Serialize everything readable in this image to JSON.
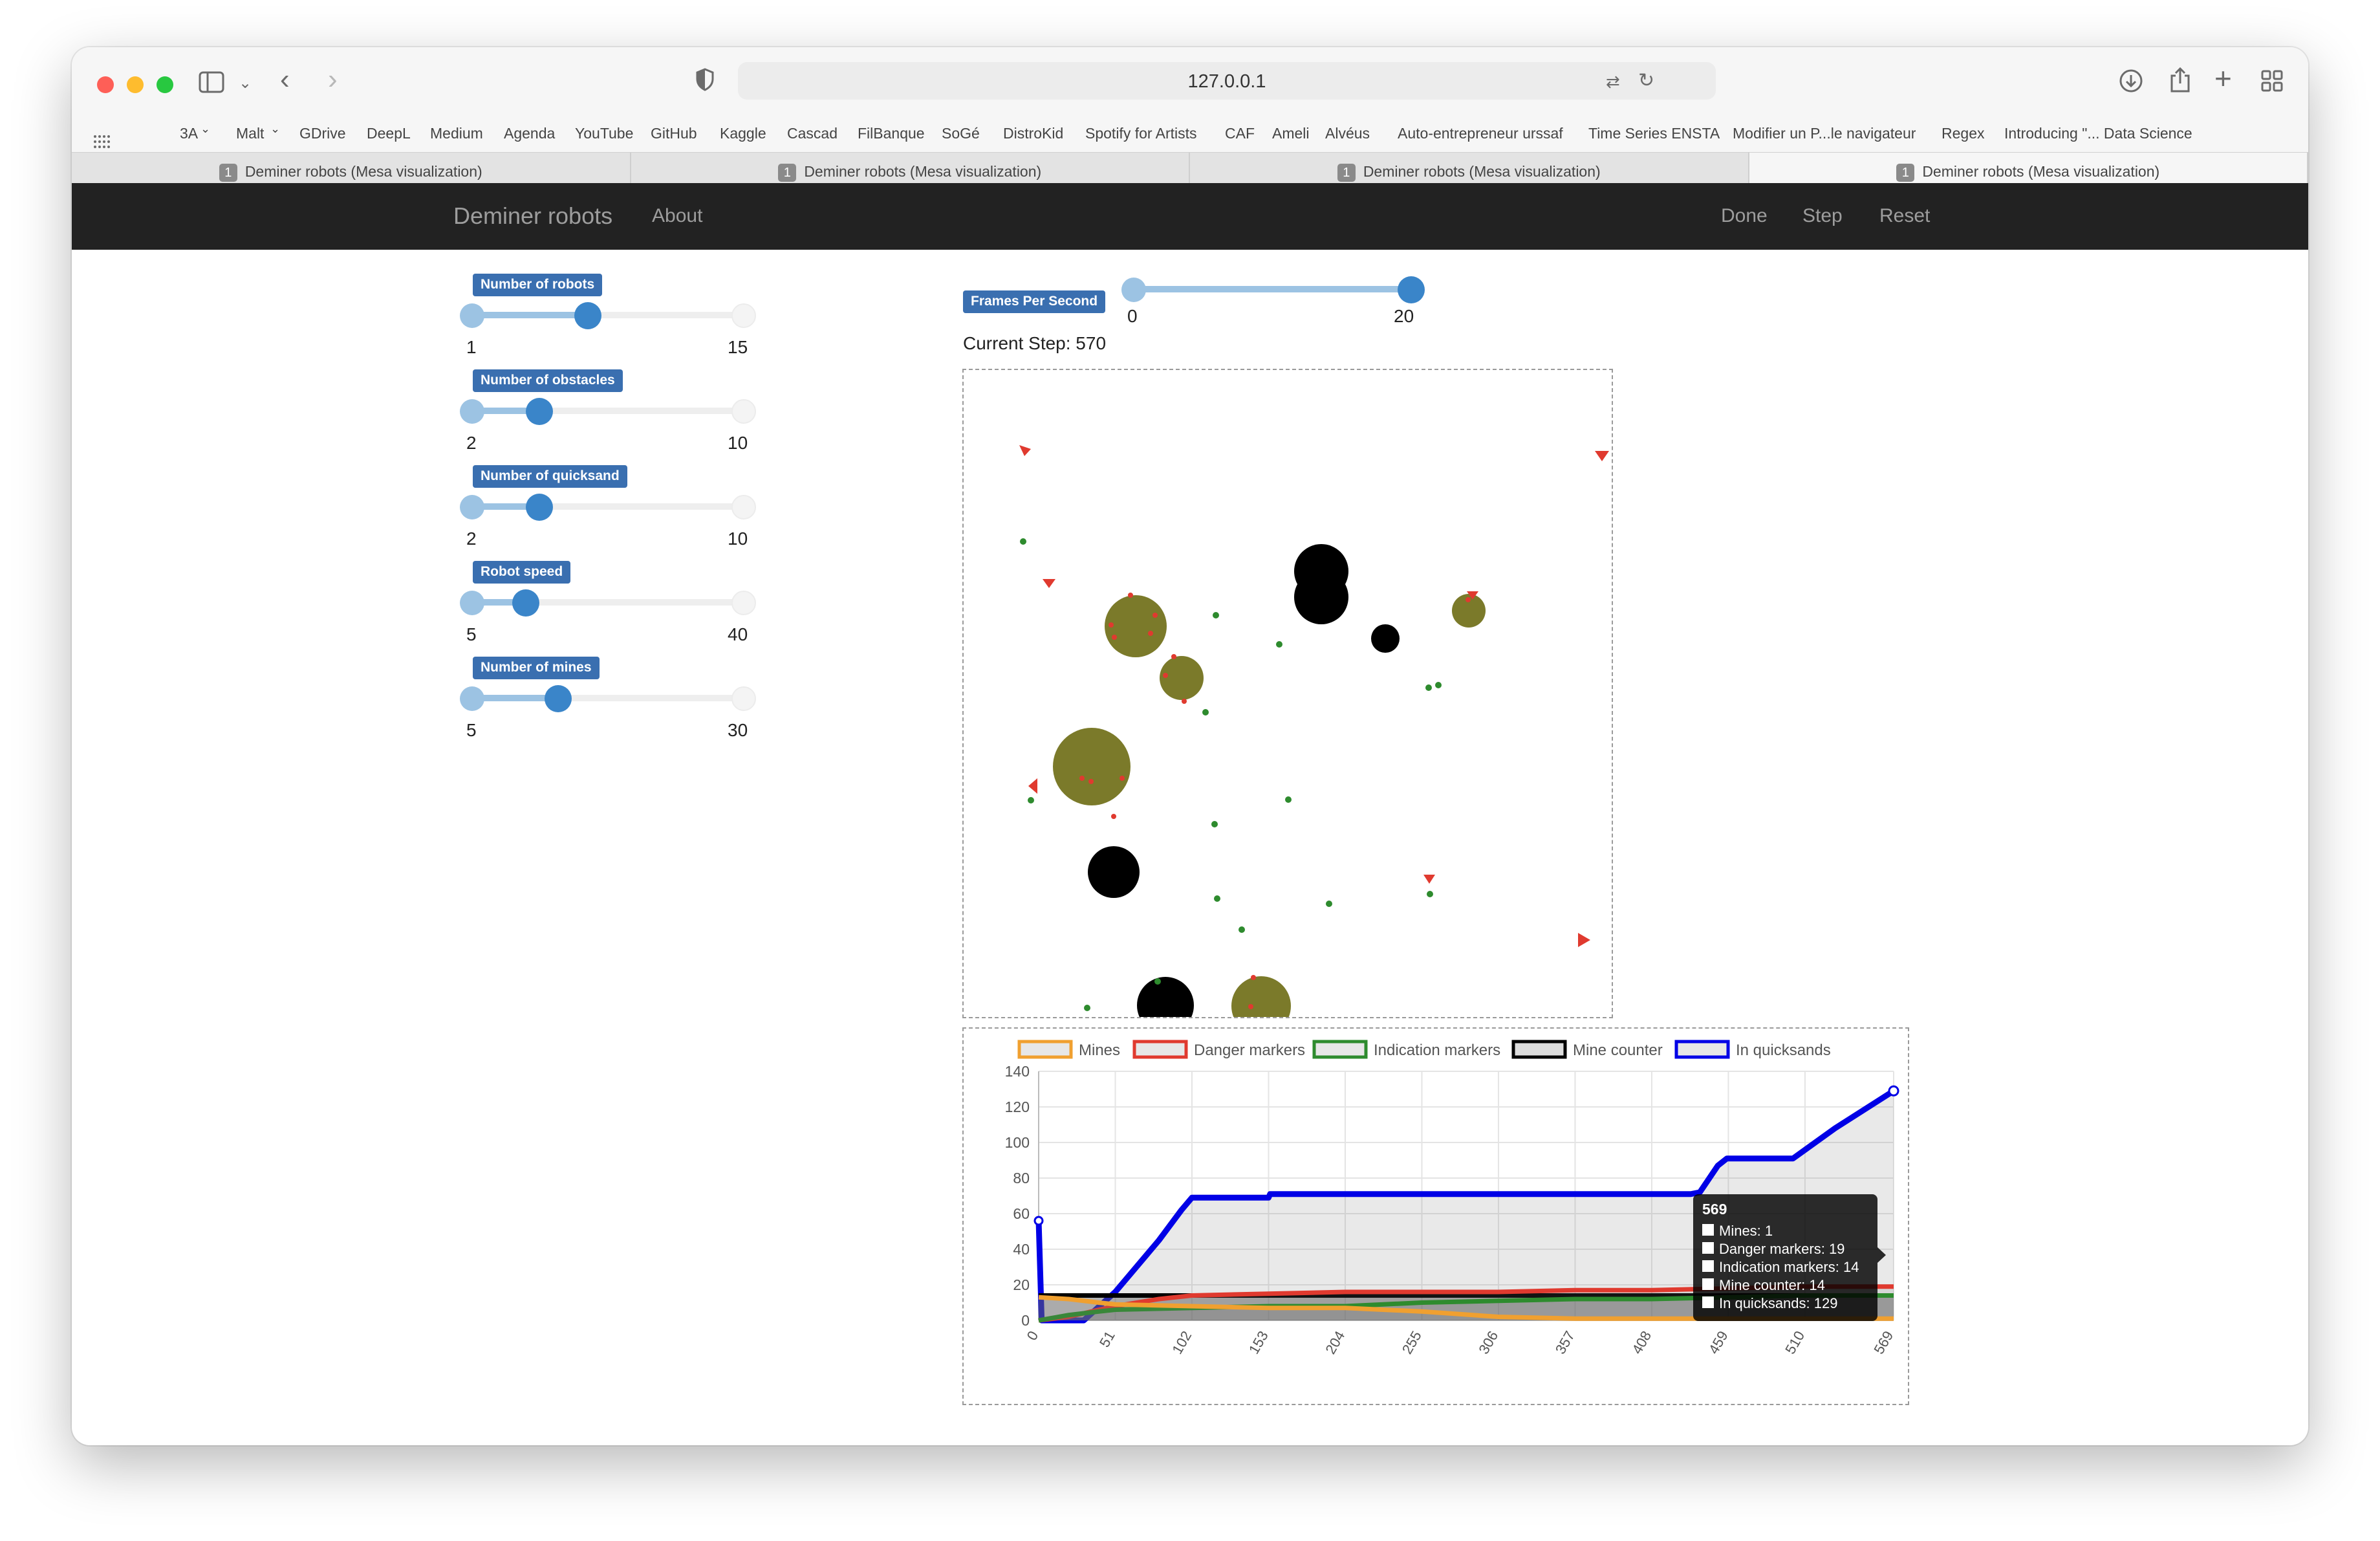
{
  "browser": {
    "url": "127.0.0.1",
    "bookmarks": [
      "3A",
      "Malt",
      "GDrive",
      "DeepL",
      "Medium",
      "Agenda",
      "YouTube",
      "GitHub",
      "Kaggle",
      "Cascad",
      "FilBanque",
      "SoGé",
      "DistroKid",
      "Spotify for Artists",
      "CAF",
      "Ameli",
      "Alvéus",
      "Auto-entrepreneur urssaf",
      "Time Series ENSTA",
      "Modifier un P...le navigateur",
      "Regex",
      "Introducing \"... Data Science"
    ],
    "tabs": [
      {
        "num": "1",
        "title": "Deminer robots (Mesa visualization)",
        "active": false
      },
      {
        "num": "1",
        "title": "Deminer robots (Mesa visualization)",
        "active": false
      },
      {
        "num": "1",
        "title": "Deminer robots (Mesa visualization)",
        "active": false
      },
      {
        "num": "1",
        "title": "Deminer robots (Mesa visualization)",
        "active": true
      }
    ]
  },
  "navbar": {
    "brand": "Deminer robots",
    "about": "About",
    "done": "Done",
    "step": "Step",
    "reset": "Reset"
  },
  "params": [
    {
      "label": "Number of robots",
      "min": "1",
      "max": "15",
      "value": 7,
      "lo": 1,
      "hi": 15
    },
    {
      "label": "Number of obstacles",
      "min": "2",
      "max": "10",
      "value": 4,
      "lo": 2,
      "hi": 10
    },
    {
      "label": "Number of quicksand",
      "min": "2",
      "max": "10",
      "value": 4,
      "lo": 2,
      "hi": 10
    },
    {
      "label": "Robot speed",
      "min": "5",
      "max": "40",
      "value": 12,
      "lo": 5,
      "hi": 40
    },
    {
      "label": "Number of mines",
      "min": "5",
      "max": "30",
      "value": 13,
      "lo": 5,
      "hi": 30
    }
  ],
  "fps": {
    "label": "Frames Per Second",
    "min": "0",
    "max": "20",
    "value": 20
  },
  "current_step": "Current Step: 570",
  "grid_colors": {
    "robot": "#e03a2f",
    "quicksand": "#7b7a2a",
    "obstacle": "#000000",
    "indication": "#2e8b2e",
    "danger": "#e03a2f"
  },
  "chart_data": {
    "type": "line",
    "x_ticks": [
      "0",
      "51",
      "102",
      "153",
      "204",
      "255",
      "306",
      "357",
      "408",
      "459",
      "510",
      "569"
    ],
    "ylim": [
      0,
      140
    ],
    "y_ticks": [
      "0",
      "20",
      "40",
      "60",
      "80",
      "100",
      "120",
      "140"
    ],
    "x_range": [
      0,
      569
    ],
    "legend_position": "top",
    "series": [
      {
        "name": "Mines",
        "color": "#f0a030",
        "points": [
          [
            0,
            13
          ],
          [
            20,
            12
          ],
          [
            40,
            10
          ],
          [
            51,
            9
          ],
          [
            102,
            8
          ],
          [
            153,
            7
          ],
          [
            204,
            7
          ],
          [
            255,
            5
          ],
          [
            306,
            2
          ],
          [
            357,
            1
          ],
          [
            408,
            1
          ],
          [
            459,
            1
          ],
          [
            510,
            1
          ],
          [
            569,
            1
          ]
        ]
      },
      {
        "name": "Danger markers",
        "color": "#e03a2f",
        "points": [
          [
            0,
            0
          ],
          [
            20,
            2
          ],
          [
            40,
            6
          ],
          [
            51,
            8
          ],
          [
            80,
            12
          ],
          [
            102,
            14
          ],
          [
            153,
            15
          ],
          [
            204,
            16
          ],
          [
            255,
            16
          ],
          [
            306,
            16
          ],
          [
            357,
            17
          ],
          [
            408,
            17
          ],
          [
            459,
            18
          ],
          [
            510,
            19
          ],
          [
            569,
            19
          ]
        ]
      },
      {
        "name": "Indication markers",
        "color": "#2e8b2e",
        "points": [
          [
            0,
            0
          ],
          [
            20,
            3
          ],
          [
            40,
            5
          ],
          [
            51,
            6
          ],
          [
            102,
            7
          ],
          [
            153,
            8
          ],
          [
            204,
            8
          ],
          [
            255,
            10
          ],
          [
            306,
            11
          ],
          [
            357,
            12
          ],
          [
            408,
            12
          ],
          [
            459,
            13
          ],
          [
            510,
            14
          ],
          [
            569,
            14
          ]
        ]
      },
      {
        "name": "Mine counter",
        "color": "#000000",
        "points": [
          [
            0,
            14
          ],
          [
            51,
            14
          ],
          [
            102,
            14
          ],
          [
            204,
            14
          ],
          [
            306,
            14
          ],
          [
            408,
            14
          ],
          [
            510,
            14
          ],
          [
            569,
            14
          ]
        ]
      },
      {
        "name": "In quicksands",
        "color": "#0000e6",
        "points": [
          [
            0,
            56
          ],
          [
            2,
            0
          ],
          [
            30,
            0
          ],
          [
            51,
            16
          ],
          [
            80,
            45
          ],
          [
            95,
            62
          ],
          [
            102,
            69
          ],
          [
            153,
            69
          ],
          [
            154,
            71
          ],
          [
            255,
            71
          ],
          [
            306,
            71
          ],
          [
            357,
            71
          ],
          [
            408,
            71
          ],
          [
            434,
            71
          ],
          [
            440,
            72
          ],
          [
            452,
            87
          ],
          [
            458,
            91
          ],
          [
            480,
            91
          ],
          [
            502,
            91
          ],
          [
            530,
            108
          ],
          [
            569,
            129
          ]
        ]
      }
    ],
    "tooltip": {
      "title": "569",
      "lines": [
        "Mines: 1",
        "Danger markers: 19",
        "Indication markers: 14",
        "Mine counter: 14",
        "In quicksands: 129"
      ]
    }
  }
}
